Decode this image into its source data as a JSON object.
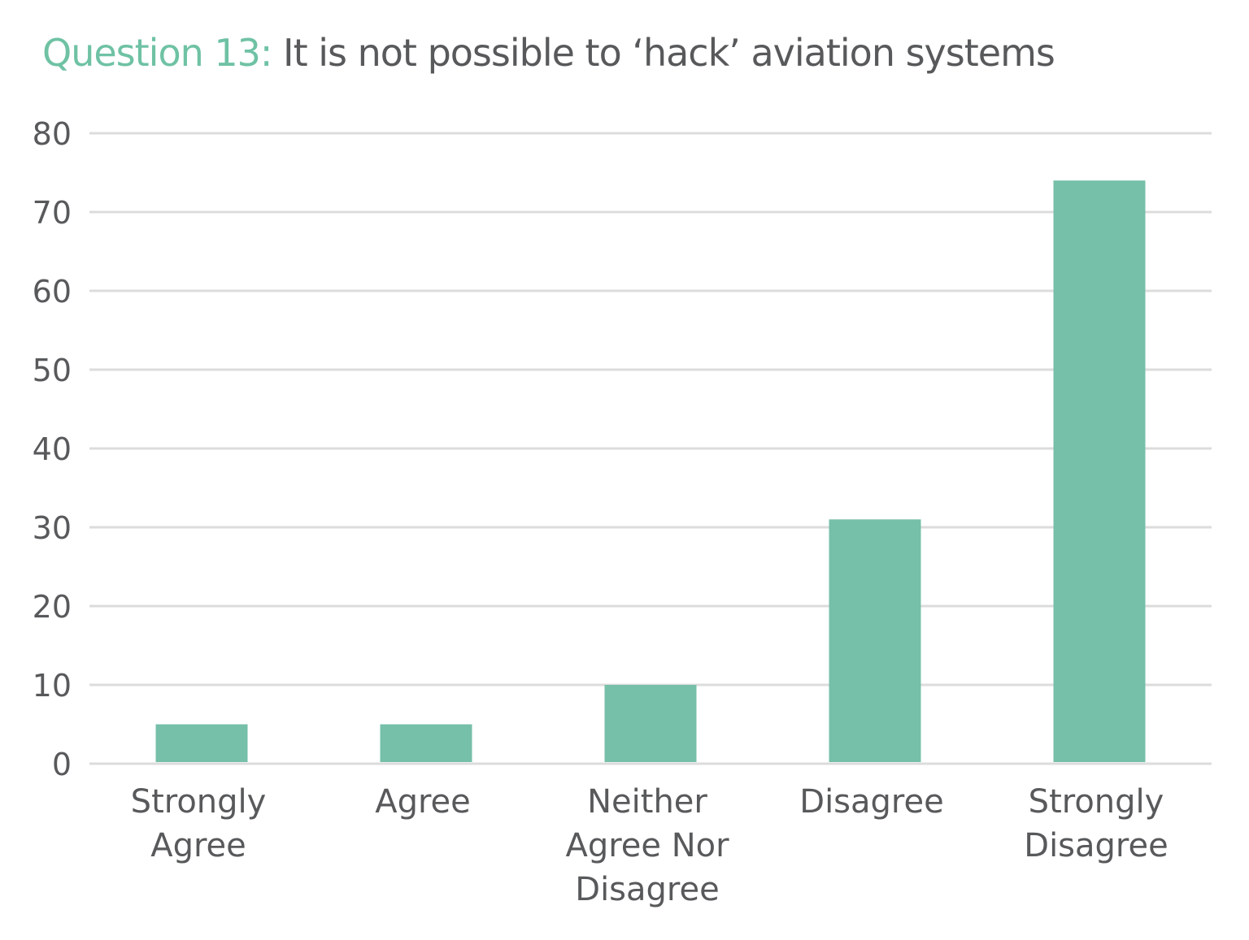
{
  "chart_data": {
    "type": "bar",
    "title_prefix": "Question 13:",
    "title": "It is not possible to ‘hack’ aviation systems",
    "categories": [
      [
        "Strongly",
        "Agree"
      ],
      [
        "Agree"
      ],
      [
        "Neither",
        "Agree Nor",
        "Disagree"
      ],
      [
        "Disagree"
      ],
      [
        "Strongly",
        "Disagree"
      ]
    ],
    "values": [
      5,
      5,
      10,
      31,
      74
    ],
    "ylim": [
      0,
      80
    ],
    "yticks": [
      0,
      10,
      20,
      30,
      40,
      50,
      60,
      70,
      80
    ],
    "grid": true,
    "colors": {
      "bar": "#76bfa9",
      "title_prefix": "#6fc2a4",
      "text": "#58595b",
      "grid": "#dcdcdc"
    }
  }
}
